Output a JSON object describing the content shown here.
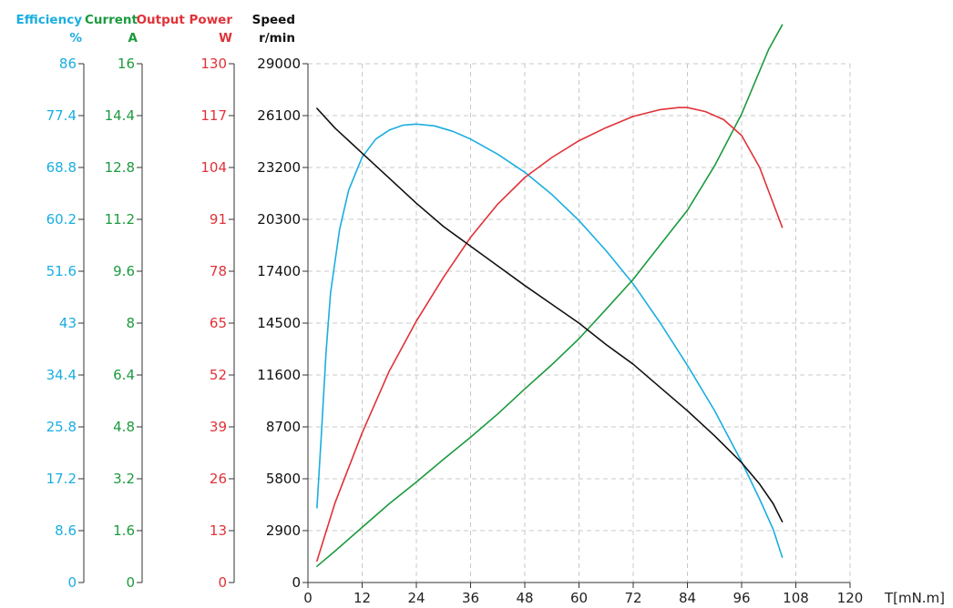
{
  "chart_data": {
    "type": "line",
    "xlabel": "T[mN.m]",
    "xlim": [
      0,
      120
    ],
    "x_ticks": [
      "0",
      "12",
      "24",
      "36",
      "48",
      "60",
      "72",
      "84",
      "96",
      "108",
      "120"
    ],
    "grid": true,
    "axes": [
      {
        "id": "efficiency",
        "title": "Efficiency",
        "unit": "%",
        "color": "#1aaee0",
        "range": [
          0,
          86
        ],
        "ticks": [
          "0",
          "8.6",
          "17.2",
          "25.8",
          "34.4",
          "43",
          "51.6",
          "60.2",
          "68.8",
          "77.4",
          "86"
        ]
      },
      {
        "id": "current",
        "title": "Current",
        "unit": "A",
        "color": "#1c9a3e",
        "range": [
          0,
          16
        ],
        "ticks": [
          "0",
          "1.6",
          "3.2",
          "4.8",
          "6.4",
          "8",
          "9.6",
          "11.2",
          "12.8",
          "14.4",
          "16"
        ]
      },
      {
        "id": "power",
        "title": "Output Power",
        "unit": "W",
        "color": "#e03238",
        "range": [
          0,
          130
        ],
        "ticks": [
          "0",
          "13",
          "26",
          "39",
          "52",
          "65",
          "78",
          "91",
          "104",
          "117",
          "130"
        ]
      },
      {
        "id": "speed",
        "title": "Speed",
        "unit": "r/min",
        "color": "#111111",
        "range": [
          0,
          29000
        ],
        "ticks": [
          "0",
          "2900",
          "5800",
          "8700",
          "11600",
          "14500",
          "17400",
          "20300",
          "23200",
          "26100",
          "29000"
        ]
      }
    ],
    "series": [
      {
        "axis": "efficiency",
        "color": "#1aaee0",
        "x": [
          2,
          3,
          4,
          5,
          7,
          9,
          12,
          15,
          18,
          21,
          24,
          28,
          32,
          36,
          42,
          48,
          54,
          60,
          66,
          72,
          78,
          84,
          90,
          96,
          100,
          103,
          105
        ],
        "y": [
          12.4,
          25,
          38,
          48,
          58.5,
          65,
          70.5,
          73.5,
          75,
          75.8,
          76,
          75.7,
          74.8,
          73.5,
          71,
          68,
          64.3,
          60,
          55,
          49.5,
          43,
          36,
          28.5,
          20,
          13.8,
          8.8,
          4.2
        ]
      },
      {
        "axis": "current",
        "color": "#1c9a3e",
        "x": [
          2,
          6,
          12,
          18,
          24,
          30,
          36,
          42,
          48,
          54,
          60,
          66,
          72,
          78,
          84,
          90,
          96,
          102,
          105
        ],
        "y": [
          0.5,
          0.97,
          1.7,
          2.43,
          3.1,
          3.8,
          4.48,
          5.2,
          5.97,
          6.72,
          7.52,
          8.43,
          9.35,
          10.42,
          11.48,
          12.85,
          14.45,
          16.45,
          17.2
        ]
      },
      {
        "axis": "power",
        "color": "#e03238",
        "x": [
          2,
          6,
          12,
          18,
          24,
          30,
          36,
          42,
          48,
          54,
          60,
          66,
          72,
          78,
          82,
          84,
          88,
          92,
          96,
          100,
          103,
          105
        ],
        "y": [
          5.4,
          20,
          37.5,
          53,
          65.5,
          76.5,
          86.5,
          94.8,
          101.5,
          106.5,
          110.7,
          114,
          116.8,
          118.5,
          119,
          119,
          118,
          116,
          112,
          104,
          95,
          89
        ]
      },
      {
        "axis": "speed",
        "color": "#111111",
        "x": [
          2,
          6,
          12,
          18,
          24,
          30,
          36,
          42,
          48,
          54,
          60,
          66,
          72,
          78,
          84,
          90,
          96,
          100,
          103,
          105
        ],
        "y": [
          26500,
          25400,
          24000,
          22600,
          21200,
          19900,
          18800,
          17700,
          16600,
          15550,
          14500,
          13300,
          12200,
          10900,
          9600,
          8200,
          6700,
          5500,
          4400,
          3400
        ]
      }
    ]
  }
}
